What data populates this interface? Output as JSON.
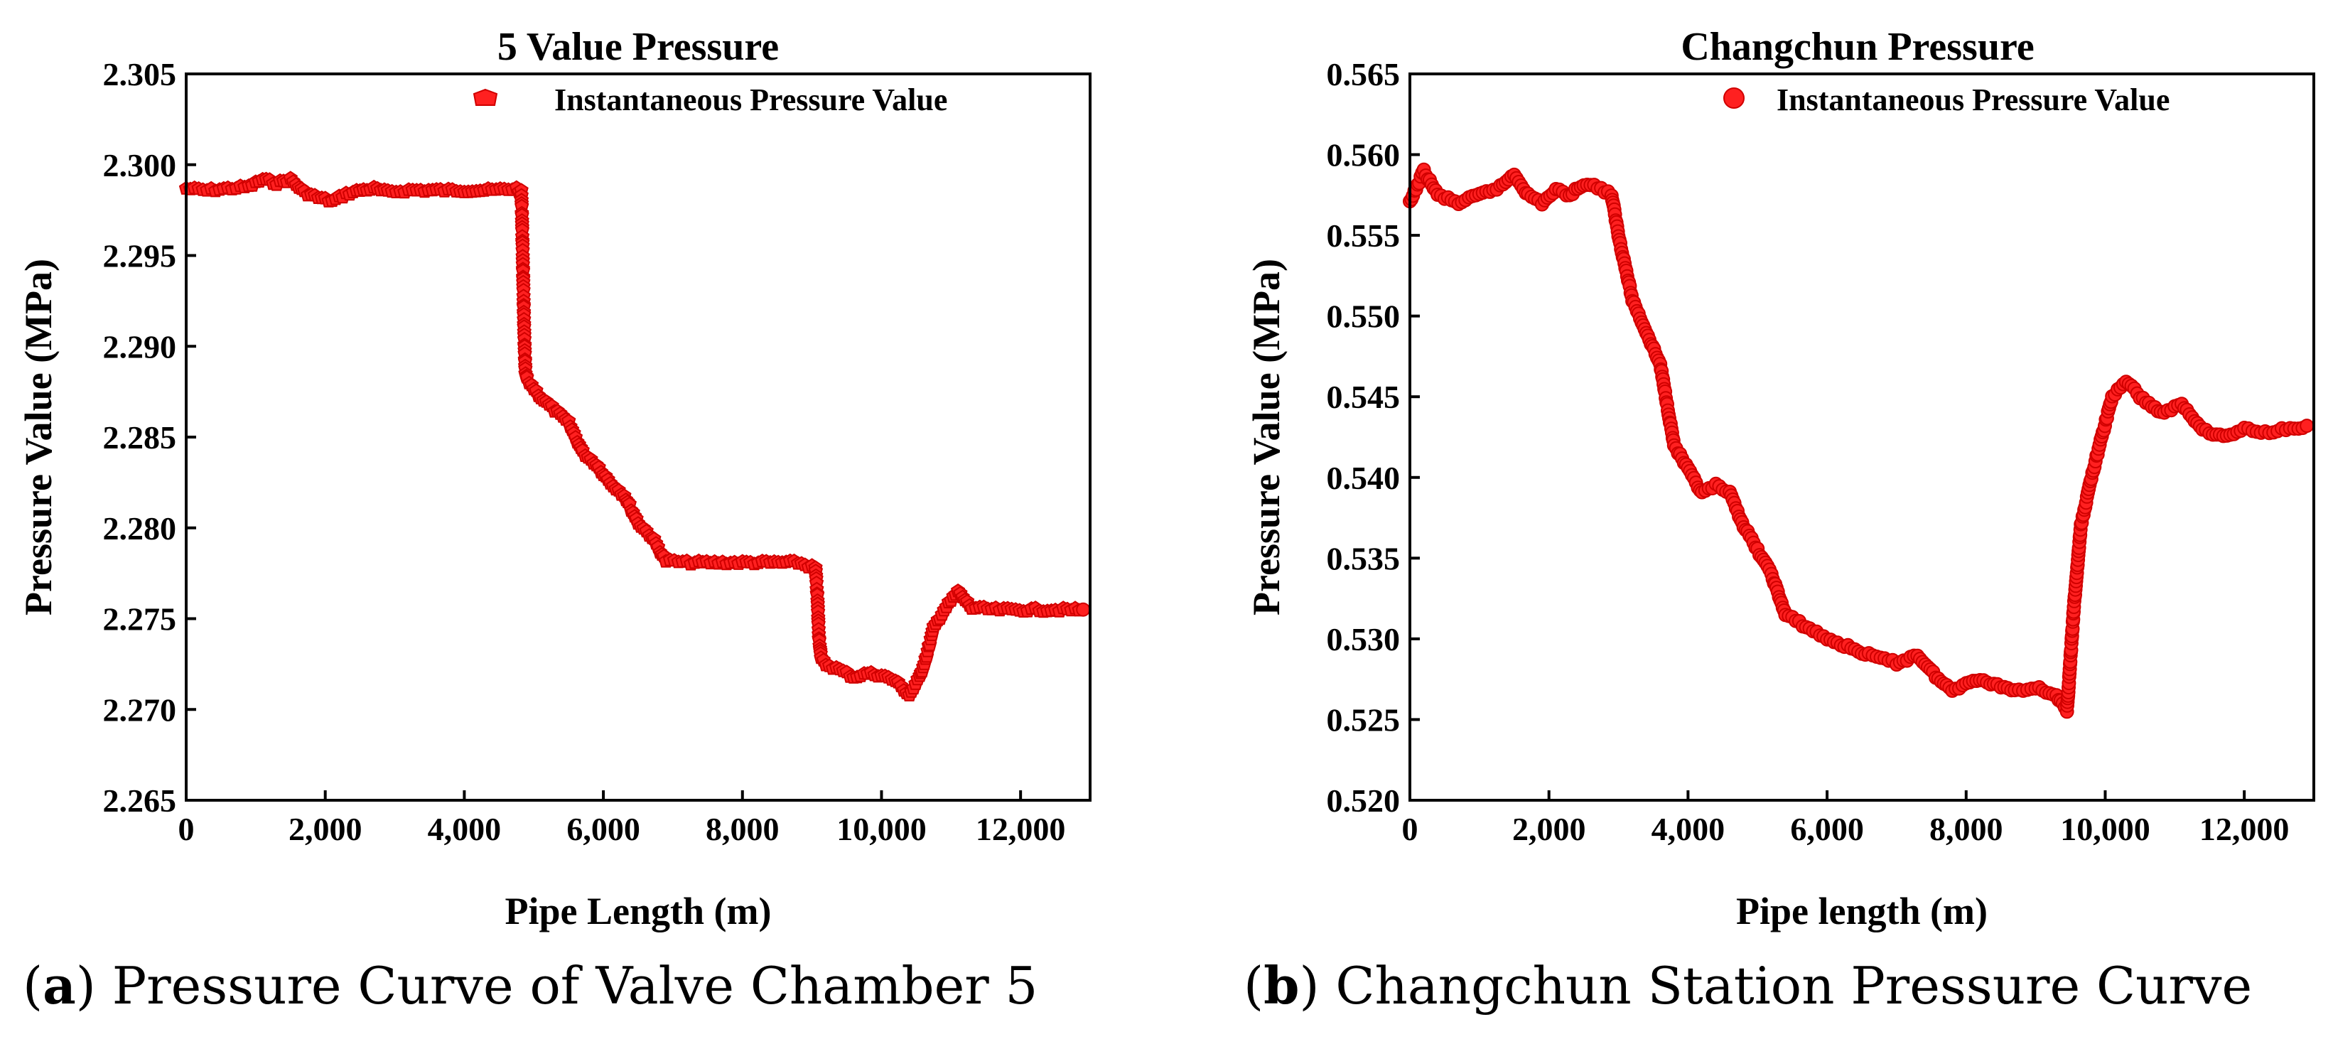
{
  "chart_data": [
    {
      "type": "scatter",
      "id": "a",
      "title": "5 Value Pressure",
      "xlabel": "Pipe Length (m)",
      "ylabel": "Pressure Value (MPa)",
      "xlim": [
        0,
        13000
      ],
      "ylim": [
        2.265,
        2.305
      ],
      "xticks": [
        0,
        2000,
        4000,
        6000,
        8000,
        10000,
        12000
      ],
      "xtick_labels": [
        "0",
        "2,000",
        "4,000",
        "6,000",
        "8,000",
        "10,000",
        "12,000"
      ],
      "yticks": [
        2.265,
        2.27,
        2.275,
        2.28,
        2.285,
        2.29,
        2.295,
        2.3,
        2.305
      ],
      "ytick_labels": [
        "2.265",
        "2.270",
        "2.275",
        "2.280",
        "2.285",
        "2.290",
        "2.295",
        "2.300",
        "2.305"
      ],
      "legend": "Instantaneous Pressure Value",
      "legend_position": "top-right",
      "caption_letter": "a",
      "caption_text": "Pressure Curve of Valve Chamber 5",
      "color": "#ff2020",
      "series": [
        {
          "name": "Instantaneous Pressure Value",
          "x": [
            0,
            300,
            600,
            900,
            1100,
            1300,
            1500,
            1700,
            1900,
            2100,
            2300,
            2500,
            2700,
            2900,
            3200,
            3600,
            4000,
            4400,
            4750,
            4820,
            4830,
            4840,
            4850,
            4860,
            4870,
            4880,
            4900,
            5100,
            5300,
            5500,
            5700,
            5900,
            6100,
            6300,
            6500,
            6700,
            6900,
            7200,
            7600,
            8000,
            8400,
            8800,
            9050,
            9080,
            9100,
            9130,
            9200,
            9400,
            9600,
            9800,
            10000,
            10200,
            10400,
            10550,
            10650,
            10750,
            10900,
            11100,
            11300,
            11700,
            12100,
            12500,
            12900
          ],
          "y": [
            2.2987,
            2.2986,
            2.2987,
            2.2988,
            2.2992,
            2.299,
            2.2992,
            2.2985,
            2.2982,
            2.298,
            2.2984,
            2.2986,
            2.2987,
            2.2985,
            2.2986,
            2.2986,
            2.2986,
            2.2986,
            2.2987,
            2.2985,
            2.297,
            2.295,
            2.293,
            2.291,
            2.2895,
            2.2885,
            2.2882,
            2.2872,
            2.2865,
            2.2858,
            2.2842,
            2.2835,
            2.2825,
            2.2818,
            2.2803,
            2.2795,
            2.2782,
            2.2781,
            2.2781,
            2.2781,
            2.2781,
            2.2781,
            2.2778,
            2.276,
            2.274,
            2.2728,
            2.2725,
            2.2722,
            2.2718,
            2.272,
            2.2719,
            2.2716,
            2.2708,
            2.2718,
            2.273,
            2.2745,
            2.2755,
            2.2765,
            2.2756,
            2.2755,
            2.2755,
            2.2755,
            2.2755
          ]
        }
      ]
    },
    {
      "type": "scatter",
      "id": "b",
      "title": "Changchun Pressure",
      "xlabel": "Pipe length (m)",
      "ylabel": "Pressure Value (MPa)",
      "xlim": [
        0,
        13000
      ],
      "ylim": [
        0.52,
        0.565
      ],
      "xticks": [
        0,
        2000,
        4000,
        6000,
        8000,
        10000,
        12000
      ],
      "xtick_labels": [
        "0",
        "2,000",
        "4,000",
        "6,000",
        "8,000",
        "10,000",
        "12,000"
      ],
      "yticks": [
        0.52,
        0.525,
        0.53,
        0.535,
        0.54,
        0.545,
        0.55,
        0.555,
        0.56,
        0.565
      ],
      "ytick_labels": [
        "0.520",
        "0.525",
        "0.530",
        "0.535",
        "0.540",
        "0.545",
        "0.550",
        "0.555",
        "0.560",
        "0.565"
      ],
      "legend": "Instantaneous Pressure Value",
      "legend_position": "top-right",
      "caption_letter": "b",
      "caption_text": "Changchun Station Pressure Curve",
      "color": "#ff2020",
      "series": [
        {
          "name": "Instantaneous Pressure Value",
          "x": [
            0,
            200,
            400,
            700,
            1000,
            1300,
            1500,
            1700,
            1900,
            2100,
            2300,
            2500,
            2700,
            2900,
            3000,
            3200,
            3400,
            3600,
            3800,
            4000,
            4200,
            4400,
            4600,
            4800,
            5000,
            5200,
            5400,
            5600,
            5800,
            6000,
            6300,
            6600,
            7000,
            7300,
            7600,
            7800,
            8100,
            8400,
            8700,
            9000,
            9300,
            9450,
            9550,
            9650,
            9800,
            9950,
            10100,
            10300,
            10500,
            10800,
            11100,
            11400,
            11700,
            12000,
            12300,
            12600,
            12900
          ],
          "y": [
            0.557,
            0.559,
            0.5575,
            0.557,
            0.5575,
            0.558,
            0.5588,
            0.5575,
            0.557,
            0.5578,
            0.5575,
            0.5582,
            0.558,
            0.5575,
            0.555,
            0.551,
            0.549,
            0.547,
            0.542,
            0.5405,
            0.539,
            0.5395,
            0.539,
            0.537,
            0.5355,
            0.534,
            0.5315,
            0.531,
            0.5305,
            0.53,
            0.5295,
            0.529,
            0.5285,
            0.529,
            0.5275,
            0.5268,
            0.5275,
            0.5272,
            0.5268,
            0.527,
            0.5265,
            0.5255,
            0.532,
            0.537,
            0.54,
            0.5425,
            0.545,
            0.546,
            0.545,
            0.544,
            0.5445,
            0.543,
            0.5425,
            0.543,
            0.5428,
            0.543,
            0.5432
          ]
        }
      ]
    }
  ]
}
